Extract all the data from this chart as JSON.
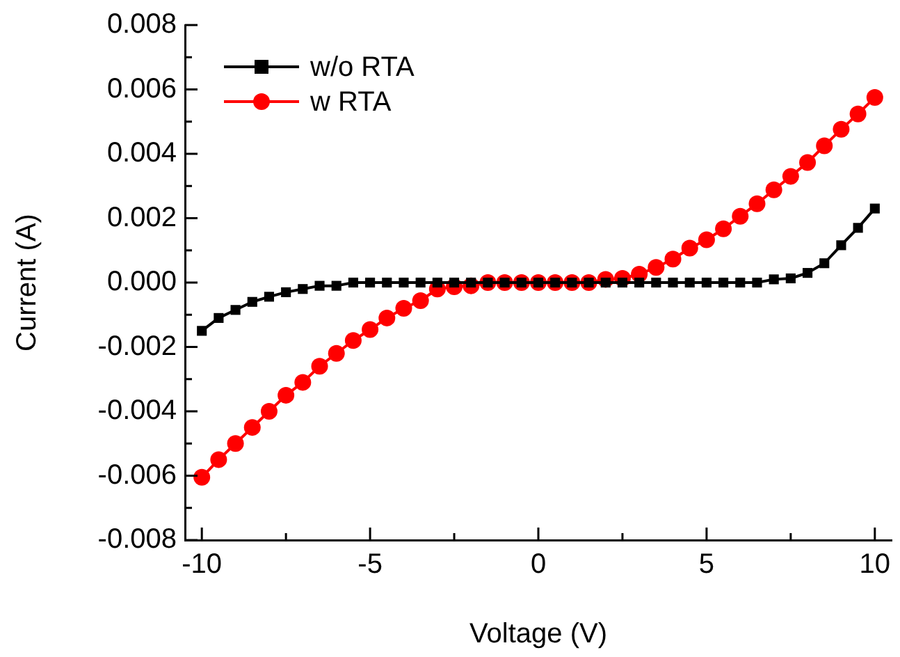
{
  "chart_data": {
    "type": "line",
    "xlabel": "Voltage (V)",
    "ylabel": "Current (A)",
    "x": [
      -10,
      -9.5,
      -9,
      -8.5,
      -8,
      -7.5,
      -7,
      -6.5,
      -6,
      -5.5,
      -5,
      -4.5,
      -4,
      -3.5,
      -3,
      -2.5,
      -2,
      -1.5,
      -1,
      -0.5,
      0,
      0.5,
      1,
      1.5,
      2,
      2.5,
      3,
      3.5,
      4,
      4.5,
      5,
      5.5,
      6,
      6.5,
      7,
      7.5,
      8,
      8.5,
      9,
      9.5,
      10
    ],
    "series": [
      {
        "name": "w/o RTA",
        "color": "#000000",
        "marker": "square",
        "values": [
          -0.0015,
          -0.0011,
          -0.00085,
          -0.0006,
          -0.00044,
          -0.0003,
          -0.0002,
          -0.0001,
          -0.0001,
          0,
          0,
          0,
          0,
          0,
          0,
          0,
          0,
          0,
          0,
          0,
          0,
          0,
          0,
          0,
          0,
          0,
          0,
          0,
          0,
          0,
          0,
          0,
          0,
          0,
          0.0001,
          0.00013,
          0.0003,
          0.0006,
          0.00116,
          0.0017,
          0.0023
        ]
      },
      {
        "name": "w RTA",
        "color": "#ff0000",
        "marker": "circle",
        "values": [
          -0.00605,
          -0.0055,
          -0.005,
          -0.0045,
          -0.004,
          -0.0035,
          -0.0031,
          -0.0026,
          -0.0022,
          -0.0018,
          -0.00146,
          -0.0011,
          -0.0008,
          -0.00056,
          -0.0002,
          -0.00013,
          -0.0001,
          0,
          0,
          0,
          0,
          0,
          0,
          0,
          0.0001,
          0.00013,
          0.00026,
          0.00047,
          0.00073,
          0.00107,
          0.00133,
          0.00167,
          0.00206,
          0.00245,
          0.00288,
          0.0033,
          0.00373,
          0.00425,
          0.00476,
          0.00524,
          0.00575
        ]
      }
    ],
    "xlim": [
      -10.5,
      10.5
    ],
    "xticks": [
      -10,
      {
        "value": -7.5,
        "label": null
      },
      -5,
      {
        "value": -2.5,
        "label": null
      },
      0,
      {
        "value": 2.5,
        "label": null
      },
      5,
      {
        "value": 7.5,
        "label": null
      },
      10
    ],
    "ylim": [
      -0.008,
      0.008
    ],
    "yticks": [
      -0.008,
      {
        "value": -0.007,
        "label": null
      },
      -0.006,
      {
        "value": -0.005,
        "label": null
      },
      -0.004,
      {
        "value": -0.003,
        "label": null
      },
      -0.002,
      {
        "value": -0.001,
        "label": null
      },
      {
        "value": 0,
        "label": "0.000"
      },
      {
        "value": 0.001,
        "label": null
      },
      0.002,
      {
        "value": 0.003,
        "label": null
      },
      0.004,
      {
        "value": 0.005,
        "label": null
      },
      0.006,
      {
        "value": 0.007,
        "label": null
      },
      0.008
    ],
    "legend": "top left",
    "grid": false,
    "line_style": "solid"
  }
}
